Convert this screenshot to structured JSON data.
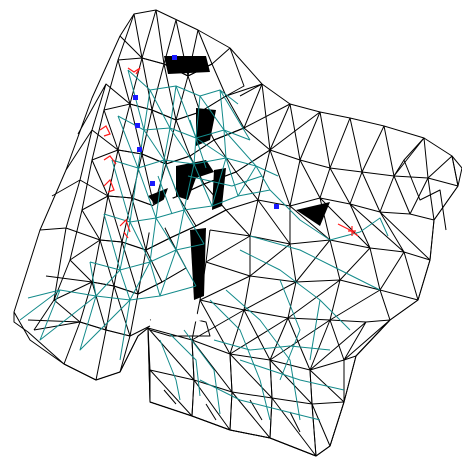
{
  "colors": {
    "background": "#ffffff",
    "mesh_edge": "#000000",
    "inner_edge": "#138a8a",
    "marker_red": "#ff1a1a",
    "marker_blue": "#1a1aff"
  },
  "markers": {
    "red_count": 8,
    "blue_count": 6
  }
}
